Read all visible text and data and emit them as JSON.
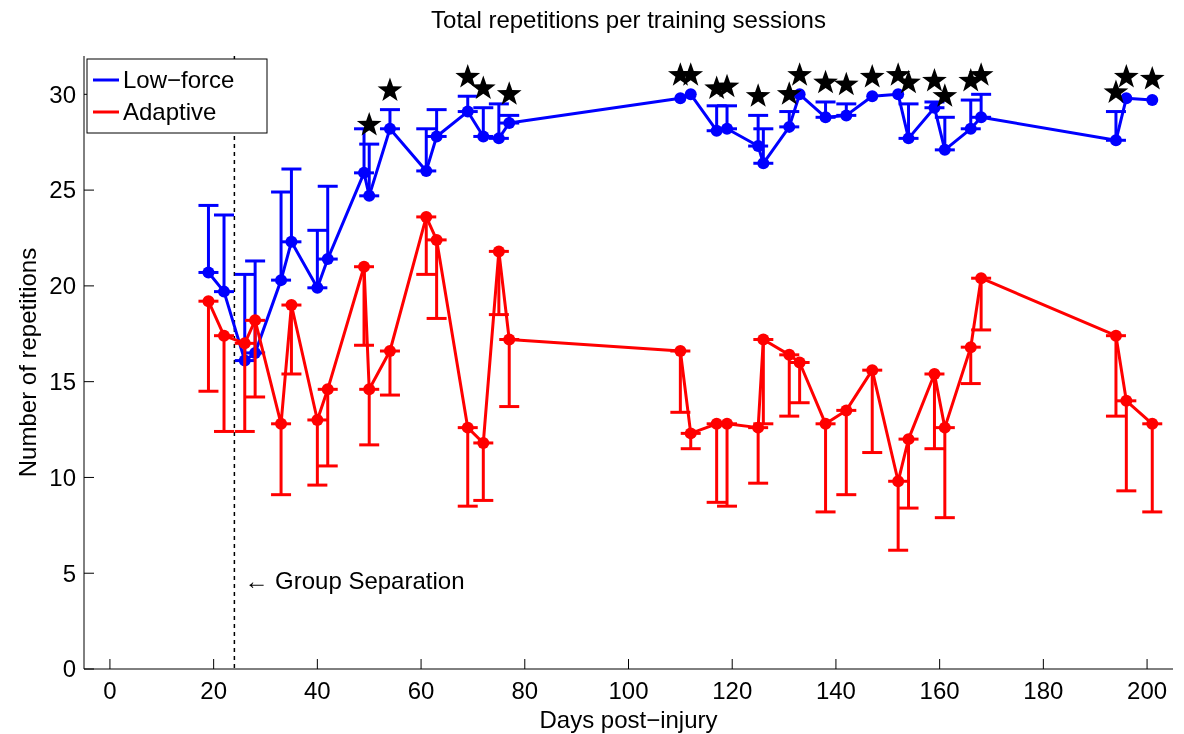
{
  "chart_data": {
    "type": "line",
    "title": "Total repetitions per training sessions",
    "xlabel": "Days post−injury",
    "ylabel": "Number of repetitions",
    "x": [
      19,
      22,
      26,
      28,
      33,
      35,
      40,
      42,
      49,
      50,
      54,
      61,
      63,
      69,
      72,
      75,
      77,
      110,
      112,
      117,
      119,
      125,
      126,
      131,
      133,
      138,
      142,
      147,
      152,
      154,
      159,
      161,
      166,
      168,
      194,
      196,
      201
    ],
    "series": [
      {
        "name": "Low−force",
        "color": "#0000ff",
        "values": [
          20.7,
          19.7,
          16.1,
          16.5,
          20.3,
          22.3,
          19.9,
          21.4,
          25.9,
          24.7,
          28.2,
          26,
          27.8,
          29.1,
          27.8,
          27.7,
          28.5,
          29.8,
          30,
          28.1,
          28.2,
          27.3,
          26.4,
          28.3,
          30,
          28.8,
          28.9,
          29.9,
          30,
          27.7,
          29.3,
          27.1,
          28.2,
          28.8,
          27.6,
          29.8,
          29.7
        ],
        "errors": [
          [
            20.7,
            24.2
          ],
          [
            19.7,
            23.7
          ],
          [
            16.1,
            20.6
          ],
          [
            16.5,
            21.3
          ],
          [
            20.3,
            24.9
          ],
          [
            22.3,
            26.1
          ],
          [
            19.9,
            22.9
          ],
          [
            21.4,
            25.2
          ],
          [
            25.9,
            28.2
          ],
          [
            24.7,
            27.4
          ],
          [
            28.2,
            29.2
          ],
          [
            26,
            28.2
          ],
          [
            27.8,
            29.2
          ],
          [
            29.1,
            29.9
          ],
          [
            27.8,
            29.3
          ],
          [
            27.7,
            29.5
          ],
          [
            28.5,
            28.9
          ],
          null,
          null,
          [
            28.1,
            29.4
          ],
          [
            28.2,
            29.4
          ],
          [
            27.3,
            28.9
          ],
          [
            26.4,
            28.2
          ],
          [
            28.3,
            29.1
          ],
          null,
          [
            28.8,
            29.6
          ],
          [
            28.9,
            29.5
          ],
          null,
          null,
          [
            27.7,
            29.5
          ],
          [
            29.3,
            29.6
          ],
          [
            27.1,
            28.8
          ],
          [
            28.2,
            29.7
          ],
          [
            28.8,
            30
          ],
          [
            27.6,
            29.1
          ],
          null,
          null
        ]
      },
      {
        "name": "Adaptive",
        "color": "#ff0000",
        "values": [
          19.2,
          17.4,
          17,
          18.2,
          12.8,
          19,
          13,
          14.6,
          21,
          14.6,
          16.6,
          23.6,
          22.4,
          12.6,
          11.8,
          21.8,
          17.2,
          16.6,
          12.3,
          12.8,
          12.8,
          12.6,
          17.2,
          16.4,
          16,
          12.8,
          13.5,
          15.6,
          9.8,
          12,
          15.4,
          12.6,
          16.8,
          20.4,
          17.4,
          14,
          12.8
        ],
        "errors": [
          [
            14.5,
            19.2
          ],
          [
            12.4,
            17.4
          ],
          [
            12.4,
            17
          ],
          [
            14.2,
            18.2
          ],
          [
            9.1,
            12.8
          ],
          [
            15.4,
            19
          ],
          [
            9.6,
            13
          ],
          [
            10.6,
            14.6
          ],
          [
            16.9,
            21
          ],
          [
            11.7,
            14.6
          ],
          [
            14.3,
            16.6
          ],
          [
            20.6,
            23.6
          ],
          [
            18.3,
            22.4
          ],
          [
            8.5,
            12.6
          ],
          [
            8.8,
            11.8
          ],
          [
            18.5,
            21.8
          ],
          [
            13.7,
            17.2
          ],
          [
            13.4,
            16.6
          ],
          [
            11.5,
            12.3
          ],
          [
            8.7,
            12.8
          ],
          [
            8.5,
            12.8
          ],
          [
            9.7,
            12.6
          ],
          [
            12.8,
            17.2
          ],
          [
            13.2,
            16.4
          ],
          [
            13.9,
            16
          ],
          [
            8.2,
            12.8
          ],
          [
            9.1,
            13.5
          ],
          [
            11.3,
            15.6
          ],
          [
            6.2,
            9.8
          ],
          [
            8.4,
            12
          ],
          [
            11.5,
            15.4
          ],
          [
            7.9,
            12.6
          ],
          [
            14.9,
            16.8
          ],
          [
            17.7,
            20.4
          ],
          [
            13.2,
            17.4
          ],
          [
            9.3,
            14
          ],
          [
            8.2,
            12.8
          ]
        ]
      },
      {
        "type": "scatter",
        "color": "#000000",
        "marker": "star",
        "x": [
          50,
          54,
          69,
          72,
          77,
          110,
          112,
          117,
          119,
          125,
          131,
          133,
          138,
          142,
          147,
          152,
          154,
          159,
          161,
          166,
          168,
          194,
          196,
          201
        ],
        "values": [
          28.4,
          30.2,
          30.9,
          30.3,
          30,
          31,
          31,
          30.3,
          30.4,
          29.9,
          30,
          31,
          30.6,
          30.5,
          30.9,
          31,
          30.6,
          30.7,
          29.9,
          30.7,
          31,
          30.1,
          30.9,
          30.8
        ]
      }
    ],
    "marker": "circle",
    "legend": "top left",
    "grid": false,
    "xlim": [
      -5,
      205
    ],
    "xticks": [
      0,
      20,
      40,
      60,
      80,
      100,
      120,
      140,
      160,
      180,
      200
    ],
    "ylim": [
      0,
      32
    ],
    "yticks": [
      0,
      5,
      10,
      15,
      20,
      25,
      30
    ],
    "ref_lines": [
      {
        "axis": "x",
        "value": 24,
        "label": "← Group Separation",
        "color": "#000000",
        "line_style": "dashed"
      }
    ]
  }
}
